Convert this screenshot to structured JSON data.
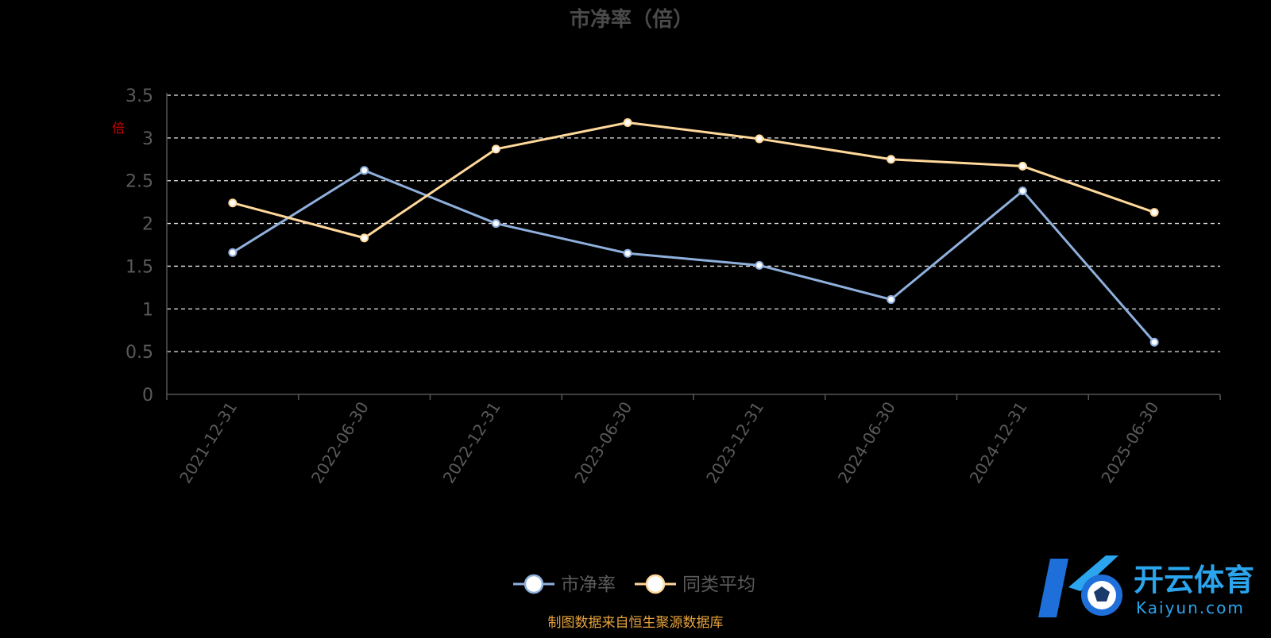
{
  "chart_data": {
    "type": "line",
    "title": "市净率（倍）",
    "ylabel_mark": "倍",
    "categories": [
      "2021-12-31",
      "2022-06-30",
      "2022-12-31",
      "2023-06-30",
      "2023-12-31",
      "2024-06-30",
      "2024-12-31",
      "2025-06-30"
    ],
    "yticks": [
      "0",
      "0.5",
      "1",
      "1.5",
      "2",
      "2.5",
      "3",
      "3.5"
    ],
    "ylim": [
      0,
      3.5
    ],
    "grid": true,
    "legend_position": "bottom-center",
    "series": [
      {
        "name": "市净率",
        "color": "#8fb0dd",
        "values": [
          1.66,
          2.62,
          2.0,
          1.65,
          1.51,
          1.11,
          2.38,
          0.61
        ]
      },
      {
        "name": "同类平均",
        "color": "#ffd89b",
        "values": [
          2.24,
          1.83,
          2.87,
          3.18,
          2.99,
          2.75,
          2.67,
          2.13
        ]
      }
    ],
    "source": "制图数据来自恒生聚源数据库"
  },
  "logo": {
    "wordmark": "开云体育",
    "domain": "Kaiyun.com",
    "colors": [
      "#1e6fd9",
      "#2aa5ee"
    ]
  }
}
